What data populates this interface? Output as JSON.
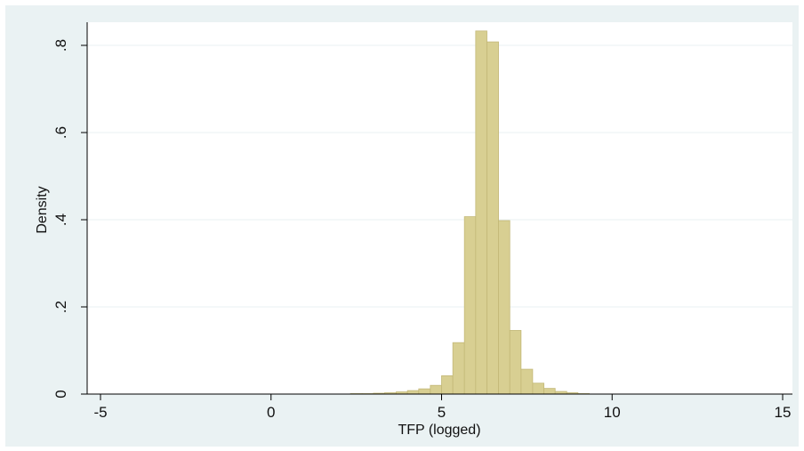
{
  "chart_data": {
    "type": "bar",
    "xlabel": "TFP (logged)",
    "ylabel": "Density",
    "xlim": [
      -5,
      15
    ],
    "ylim": [
      0,
      0.85
    ],
    "x_ticks": [
      -5,
      0,
      5,
      10,
      15
    ],
    "x_tick_labels": [
      "-5",
      "0",
      "5",
      "10",
      "15"
    ],
    "y_ticks": [
      0,
      0.2,
      0.4,
      0.6,
      0.8
    ],
    "y_tick_labels": [
      "0",
      ".2",
      ".4",
      ".6",
      ".8"
    ],
    "grid": true,
    "bin_width": 0.333,
    "bins": [
      {
        "x0": 2.33,
        "x1": 2.67,
        "value": 0.001
      },
      {
        "x0": 2.67,
        "x1": 3.0,
        "value": 0.001
      },
      {
        "x0": 3.0,
        "x1": 3.33,
        "value": 0.002
      },
      {
        "x0": 3.33,
        "x1": 3.67,
        "value": 0.003
      },
      {
        "x0": 3.67,
        "x1": 4.0,
        "value": 0.005
      },
      {
        "x0": 4.0,
        "x1": 4.33,
        "value": 0.008
      },
      {
        "x0": 4.33,
        "x1": 4.67,
        "value": 0.012
      },
      {
        "x0": 4.67,
        "x1": 5.0,
        "value": 0.02
      },
      {
        "x0": 5.0,
        "x1": 5.33,
        "value": 0.042
      },
      {
        "x0": 5.33,
        "x1": 5.67,
        "value": 0.118
      },
      {
        "x0": 5.67,
        "x1": 6.0,
        "value": 0.407
      },
      {
        "x0": 6.0,
        "x1": 6.33,
        "value": 0.833
      },
      {
        "x0": 6.33,
        "x1": 6.67,
        "value": 0.808
      },
      {
        "x0": 6.67,
        "x1": 7.0,
        "value": 0.398
      },
      {
        "x0": 7.0,
        "x1": 7.33,
        "value": 0.146
      },
      {
        "x0": 7.33,
        "x1": 7.67,
        "value": 0.057
      },
      {
        "x0": 7.67,
        "x1": 8.0,
        "value": 0.025
      },
      {
        "x0": 8.0,
        "x1": 8.33,
        "value": 0.013
      },
      {
        "x0": 8.33,
        "x1": 8.67,
        "value": 0.006
      },
      {
        "x0": 8.67,
        "x1": 9.0,
        "value": 0.003
      },
      {
        "x0": 9.0,
        "x1": 9.33,
        "value": 0.001
      }
    ],
    "colors": {
      "outer_background": "#eaf2f3",
      "plot_background": "#ffffff",
      "bar_fill": "#d8cf92",
      "bar_stroke": "#c3b877",
      "gridline": "#eaf2f3",
      "axis": "#000000"
    }
  }
}
